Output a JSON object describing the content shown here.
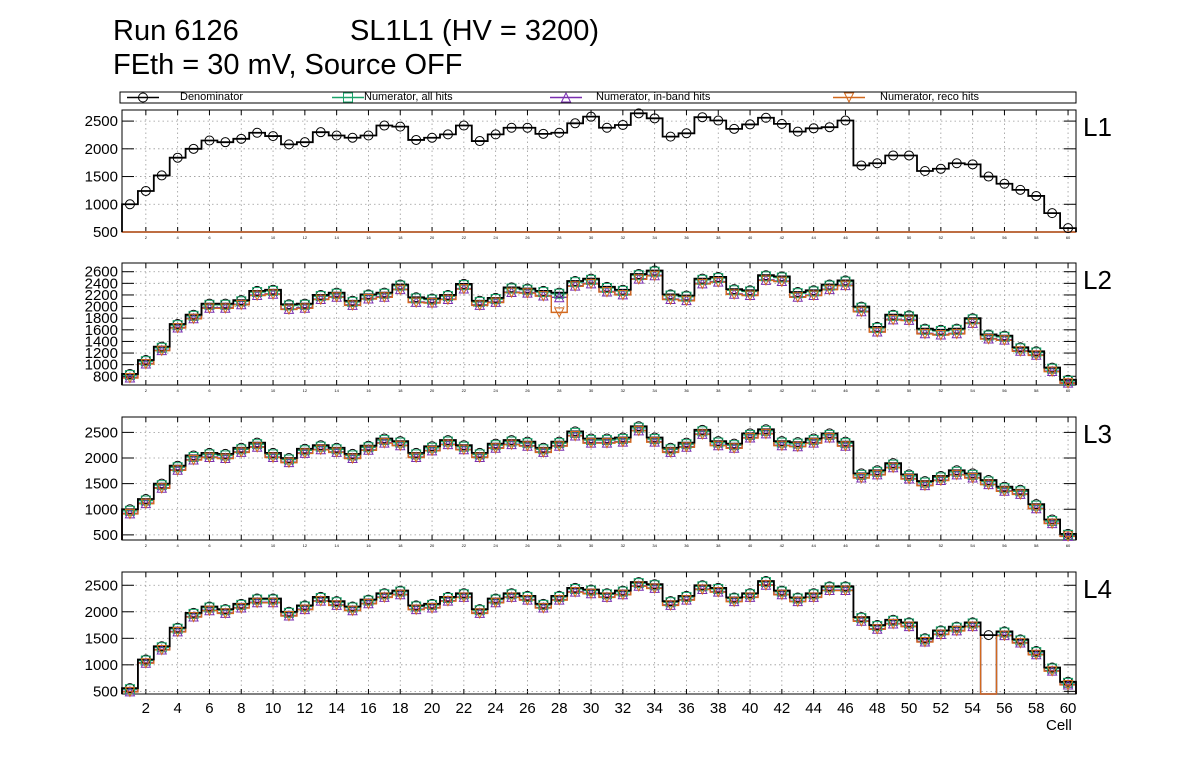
{
  "header": {
    "run": "Run 6126",
    "layer": "SL1L1 (HV = 3200)",
    "threshold": "FEth = 30 mV, Source OFF"
  },
  "chart_data": {
    "type": "histogram",
    "xlabel": "Cell",
    "xlim": [
      1,
      61
    ],
    "bottom_x_ticks": [
      "2",
      "4",
      "6",
      "8",
      "10",
      "12",
      "14",
      "16",
      "18",
      "20",
      "22",
      "24",
      "26",
      "28",
      "30",
      "32",
      "34",
      "36",
      "38",
      "40",
      "42",
      "44",
      "46",
      "48",
      "50",
      "52",
      "54",
      "56",
      "58",
      "60"
    ],
    "series": [
      {
        "name": "Denominator",
        "color": "#000000",
        "marker": "circle"
      },
      {
        "name": "Numerator, all hits",
        "color": "#1aa36a",
        "marker": "square"
      },
      {
        "name": "Numerator, in-band hits",
        "color": "#7a2fb0",
        "marker": "triangle-up"
      },
      {
        "name": "Numerator, reco hits",
        "color": "#d2691e",
        "marker": "triangle-down"
      }
    ],
    "panels": [
      {
        "label": "L1",
        "ylim": [
          500,
          2700
        ],
        "yticks": [
          "500",
          "1000",
          "1500",
          "2000",
          "2500"
        ],
        "denominator": [
          1000,
          1240,
          1520,
          1840,
          2000,
          2150,
          2120,
          2180,
          2290,
          2230,
          2080,
          2120,
          2300,
          2240,
          2200,
          2240,
          2420,
          2400,
          2160,
          2200,
          2260,
          2420,
          2140,
          2260,
          2380,
          2380,
          2270,
          2290,
          2460,
          2580,
          2380,
          2430,
          2640,
          2550,
          2220,
          2280,
          2570,
          2510,
          2360,
          2440,
          2560,
          2450,
          2310,
          2370,
          2390,
          2510,
          1700,
          1740,
          1880,
          1880,
          1600,
          1640,
          1740,
          1720,
          1500,
          1370,
          1260,
          1150,
          840,
          570
        ],
        "numerators": [
          [
            500,
            500,
            500,
            500,
            500,
            500,
            500,
            500,
            500,
            500,
            500,
            500,
            500,
            500,
            500,
            500,
            500,
            500,
            500,
            500,
            500,
            500,
            500,
            500,
            500,
            500,
            500,
            500,
            500,
            500,
            500,
            500,
            500,
            500,
            500,
            500,
            500,
            500,
            500,
            500,
            500,
            500,
            500,
            500,
            500,
            500,
            500,
            500,
            500,
            500,
            500,
            500,
            500,
            500,
            500,
            500,
            500,
            500,
            500,
            500
          ],
          [
            500,
            500,
            500,
            500,
            500,
            500,
            500,
            500,
            500,
            500,
            500,
            500,
            500,
            500,
            500,
            500,
            500,
            500,
            500,
            500,
            500,
            500,
            500,
            500,
            500,
            500,
            500,
            500,
            500,
            500,
            500,
            500,
            500,
            500,
            500,
            500,
            500,
            500,
            500,
            500,
            500,
            500,
            500,
            500,
            500,
            500,
            500,
            500,
            500,
            500,
            500,
            500,
            500,
            500,
            500,
            500,
            500,
            500,
            500,
            500
          ],
          [
            500,
            500,
            500,
            500,
            500,
            500,
            500,
            500,
            500,
            500,
            500,
            500,
            500,
            500,
            500,
            500,
            500,
            500,
            500,
            500,
            500,
            500,
            500,
            500,
            500,
            500,
            500,
            500,
            500,
            500,
            500,
            500,
            500,
            500,
            500,
            500,
            500,
            500,
            500,
            500,
            500,
            500,
            500,
            500,
            500,
            500,
            500,
            500,
            500,
            500,
            500,
            500,
            500,
            500,
            500,
            500,
            500,
            500,
            500,
            500
          ]
        ]
      },
      {
        "label": "L2",
        "ylim": [
          650,
          2750
        ],
        "yticks": [
          "800",
          "1000",
          "1200",
          "1400",
          "1600",
          "1800",
          "2000",
          "2200",
          "2400",
          "2600"
        ],
        "denominator": [
          840,
          1080,
          1310,
          1700,
          1860,
          2050,
          2050,
          2110,
          2270,
          2290,
          2040,
          2050,
          2200,
          2240,
          2100,
          2210,
          2240,
          2380,
          2160,
          2140,
          2200,
          2390,
          2100,
          2150,
          2330,
          2310,
          2270,
          2240,
          2440,
          2480,
          2340,
          2290,
          2560,
          2620,
          2210,
          2190,
          2480,
          2510,
          2300,
          2280,
          2540,
          2520,
          2250,
          2280,
          2380,
          2450,
          2000,
          1650,
          1860,
          1850,
          1620,
          1600,
          1620,
          1800,
          1520,
          1500,
          1300,
          1230,
          950,
          740
        ],
        "numerators": [
          [
            820,
            1060,
            1290,
            1680,
            1840,
            2030,
            2030,
            2090,
            2250,
            2270,
            2020,
            2030,
            2180,
            2220,
            2080,
            2190,
            2220,
            2360,
            2140,
            2120,
            2180,
            2370,
            2080,
            2130,
            2310,
            2290,
            2250,
            2220,
            2420,
            2460,
            2320,
            2270,
            2540,
            2600,
            2190,
            2170,
            2460,
            2490,
            2280,
            2260,
            2520,
            2500,
            2230,
            2260,
            2360,
            2430,
            1980,
            1630,
            1840,
            1830,
            1600,
            1580,
            1600,
            1780,
            1500,
            1480,
            1280,
            1210,
            930,
            720
          ],
          [
            780,
            1020,
            1250,
            1640,
            1800,
            1980,
            1980,
            2040,
            2200,
            2220,
            1960,
            1980,
            2130,
            2170,
            2030,
            2140,
            2170,
            2300,
            2080,
            2070,
            2130,
            2310,
            2030,
            2080,
            2250,
            2240,
            2190,
            2160,
            2360,
            2400,
            2260,
            2210,
            2480,
            2540,
            2130,
            2110,
            2400,
            2430,
            2220,
            2200,
            2460,
            2440,
            2170,
            2200,
            2300,
            2370,
            1920,
            1570,
            1780,
            1770,
            1540,
            1520,
            1540,
            1720,
            1450,
            1430,
            1240,
            1170,
            890,
            690
          ],
          [
            770,
            1010,
            1240,
            1630,
            1790,
            1970,
            1970,
            2030,
            2190,
            2210,
            1950,
            1970,
            2120,
            2160,
            2020,
            2130,
            2160,
            2290,
            2070,
            2060,
            2120,
            2300,
            2020,
            2070,
            2240,
            2230,
            2180,
            1900,
            2350,
            2390,
            2250,
            2200,
            2470,
            2530,
            2120,
            2100,
            2390,
            2420,
            2210,
            2190,
            2450,
            2430,
            2160,
            2190,
            2290,
            2360,
            1910,
            1560,
            1770,
            1760,
            1530,
            1510,
            1530,
            1710,
            1440,
            1420,
            1230,
            1160,
            880,
            680
          ]
        ]
      },
      {
        "label": "L3",
        "ylim": [
          400,
          2800
        ],
        "yticks": [
          "500",
          "1000",
          "1500",
          "2000",
          "2500"
        ],
        "denominator": [
          1000,
          1200,
          1500,
          1850,
          2050,
          2100,
          2080,
          2200,
          2300,
          2100,
          2000,
          2180,
          2250,
          2200,
          2080,
          2240,
          2380,
          2330,
          2100,
          2230,
          2350,
          2250,
          2100,
          2280,
          2350,
          2320,
          2200,
          2320,
          2520,
          2380,
          2380,
          2400,
          2620,
          2400,
          2200,
          2300,
          2550,
          2330,
          2280,
          2480,
          2560,
          2330,
          2310,
          2380,
          2480,
          2320,
          1700,
          1760,
          1900,
          1680,
          1550,
          1650,
          1760,
          1700,
          1570,
          1440,
          1380,
          1100,
          800,
          520
        ],
        "numerators": [
          [
            970,
            1170,
            1470,
            1820,
            2020,
            2070,
            2050,
            2170,
            2270,
            2070,
            1970,
            2150,
            2220,
            2170,
            2050,
            2210,
            2350,
            2300,
            2070,
            2200,
            2320,
            2220,
            2070,
            2250,
            2320,
            2290,
            2170,
            2290,
            2490,
            2350,
            2350,
            2370,
            2590,
            2370,
            2170,
            2270,
            2520,
            2300,
            2250,
            2450,
            2530,
            2300,
            2280,
            2350,
            2450,
            2290,
            1670,
            1730,
            1870,
            1650,
            1520,
            1620,
            1730,
            1670,
            1540,
            1410,
            1350,
            1070,
            770,
            500
          ],
          [
            920,
            1120,
            1420,
            1770,
            1970,
            2020,
            2000,
            2120,
            2220,
            2020,
            1920,
            2100,
            2170,
            2120,
            2000,
            2160,
            2300,
            2250,
            2020,
            2150,
            2270,
            2170,
            2020,
            2200,
            2270,
            2240,
            2120,
            2240,
            2440,
            2300,
            2300,
            2320,
            2540,
            2320,
            2120,
            2220,
            2470,
            2250,
            2200,
            2400,
            2480,
            2250,
            2230,
            2300,
            2400,
            2240,
            1620,
            1680,
            1820,
            1600,
            1470,
            1570,
            1680,
            1620,
            1490,
            1360,
            1300,
            1020,
            730,
            480
          ],
          [
            910,
            1110,
            1410,
            1760,
            1960,
            2010,
            1990,
            2110,
            2210,
            2010,
            1910,
            2090,
            2160,
            2110,
            1990,
            2150,
            2290,
            2240,
            2010,
            2140,
            2260,
            2160,
            2010,
            2190,
            2260,
            2230,
            2110,
            2230,
            2430,
            2290,
            2290,
            2310,
            2530,
            2310,
            2110,
            2210,
            2460,
            2240,
            2190,
            2390,
            2470,
            2240,
            2220,
            2290,
            2390,
            2230,
            1610,
            1670,
            1810,
            1590,
            1460,
            1560,
            1670,
            1610,
            1480,
            1350,
            1290,
            1010,
            720,
            470
          ]
        ]
      },
      {
        "label": "L4",
        "ylim": [
          450,
          2750
        ],
        "yticks": [
          "500",
          "1000",
          "1500",
          "2000",
          "2500"
        ],
        "denominator": [
          560,
          1100,
          1350,
          1700,
          1980,
          2100,
          2050,
          2150,
          2250,
          2250,
          2000,
          2120,
          2280,
          2200,
          2100,
          2230,
          2350,
          2400,
          2120,
          2150,
          2280,
          2350,
          2050,
          2250,
          2350,
          2300,
          2150,
          2300,
          2450,
          2420,
          2350,
          2400,
          2560,
          2520,
          2200,
          2300,
          2500,
          2450,
          2270,
          2350,
          2580,
          2400,
          2270,
          2350,
          2480,
          2480,
          1900,
          1750,
          1850,
          1800,
          1500,
          1650,
          1720,
          1800,
          1560,
          1630,
          1480,
          1260,
          950,
          680
        ],
        "numerators": [
          [
            540,
            1080,
            1330,
            1680,
            1960,
            2080,
            2030,
            2130,
            2230,
            2230,
            1980,
            2100,
            2260,
            2180,
            2080,
            2210,
            2330,
            2380,
            2100,
            2130,
            2260,
            2330,
            2030,
            2230,
            2330,
            2280,
            2130,
            2280,
            2430,
            2400,
            2330,
            2380,
            2540,
            2500,
            2180,
            2280,
            2480,
            2430,
            2250,
            2330,
            2560,
            2380,
            2250,
            2330,
            2460,
            2460,
            1880,
            1730,
            1830,
            1780,
            1480,
            1630,
            1700,
            1780,
            450,
            1610,
            1460,
            1240,
            930,
            660
          ],
          [
            500,
            1040,
            1290,
            1630,
            1910,
            2030,
            1980,
            2080,
            2180,
            2180,
            1930,
            2050,
            2210,
            2130,
            2030,
            2160,
            2280,
            2330,
            2050,
            2080,
            2210,
            2280,
            1980,
            2180,
            2280,
            2230,
            2080,
            2230,
            2380,
            2350,
            2280,
            2330,
            2490,
            2450,
            2130,
            2230,
            2430,
            2380,
            2200,
            2280,
            2510,
            2330,
            2200,
            2280,
            2410,
            2410,
            1830,
            1680,
            1780,
            1730,
            1440,
            1580,
            1650,
            1730,
            450,
            1560,
            1420,
            1200,
            890,
            630
          ],
          [
            490,
            1030,
            1280,
            1620,
            1900,
            2020,
            1970,
            2070,
            2170,
            2170,
            1920,
            2040,
            2200,
            2120,
            2020,
            2150,
            2270,
            2320,
            2040,
            2070,
            2200,
            2270,
            1970,
            2170,
            2270,
            2220,
            2070,
            2220,
            2370,
            2340,
            2270,
            2320,
            2480,
            2440,
            2120,
            2220,
            2420,
            2370,
            2190,
            2270,
            2500,
            2320,
            2190,
            2270,
            2400,
            2400,
            1820,
            1670,
            1770,
            1720,
            1430,
            1570,
            1640,
            1720,
            450,
            1550,
            1410,
            1190,
            880,
            620
          ]
        ]
      }
    ]
  }
}
